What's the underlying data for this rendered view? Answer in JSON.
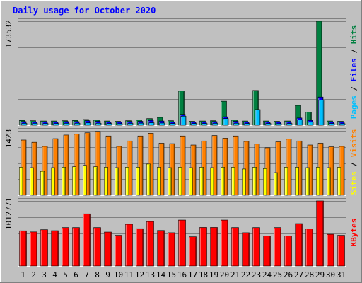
{
  "chart_data": [
    {
      "type": "bar",
      "title": "Daily usage for October 2020",
      "categories": [
        "1",
        "2",
        "3",
        "4",
        "5",
        "6",
        "7",
        "8",
        "9",
        "10",
        "11",
        "12",
        "13",
        "14",
        "15",
        "16",
        "17",
        "18",
        "19",
        "20",
        "21",
        "22",
        "23",
        "24",
        "25",
        "26",
        "27",
        "28",
        "29",
        "30",
        "31"
      ],
      "weekend_days": [
        "3",
        "4",
        "10",
        "11",
        "17",
        "18",
        "24",
        "25",
        "31"
      ],
      "max_label": "173532",
      "ylim": [
        0,
        173532
      ],
      "series": [
        {
          "name": "Hits",
          "color": "#008040",
          "values": [
            8000,
            7500,
            7000,
            7000,
            7500,
            8000,
            9500,
            8500,
            7000,
            6500,
            7500,
            8500,
            11000,
            13000,
            7500,
            57000,
            6500,
            7000,
            7500,
            40000,
            8500,
            7000,
            58000,
            7000,
            6500,
            7000,
            33000,
            22000,
            173532,
            7000,
            6500
          ]
        },
        {
          "name": "Files",
          "color": "#0000ff",
          "values": [
            6000,
            5500,
            5500,
            5500,
            6000,
            6000,
            7500,
            6500,
            5500,
            5000,
            6000,
            6500,
            8000,
            7000,
            5500,
            18000,
            5500,
            5500,
            6000,
            14000,
            6500,
            5500,
            9000,
            5500,
            5000,
            5500,
            12000,
            8000,
            47000,
            5500,
            5000
          ]
        },
        {
          "name": "Pages",
          "color": "#00c0ff",
          "values": [
            3000,
            3000,
            2800,
            2800,
            3000,
            3200,
            3800,
            3200,
            2800,
            2500,
            3000,
            3300,
            4000,
            3500,
            2800,
            15000,
            2800,
            2800,
            3000,
            11000,
            3200,
            2800,
            26000,
            2800,
            2500,
            2800,
            9000,
            5000,
            42000,
            2800,
            2500
          ]
        }
      ],
      "legend_right": [
        "Pages",
        "Files",
        "Hits"
      ]
    },
    {
      "type": "bar",
      "max_label": "1423",
      "ylim": [
        0,
        1423
      ],
      "series": [
        {
          "name": "Visits",
          "color": "#ff8000",
          "values": [
            1220,
            1170,
            1080,
            1250,
            1330,
            1350,
            1380,
            1410,
            1310,
            1080,
            1200,
            1310,
            1370,
            1150,
            1140,
            1310,
            1110,
            1200,
            1320,
            1260,
            1310,
            1190,
            1130,
            1050,
            1180,
            1240,
            1200,
            1110,
            1150,
            1070,
            1080
          ]
        },
        {
          "name": "Sites",
          "color": "#ffff00",
          "values": [
            620,
            610,
            530,
            610,
            620,
            630,
            660,
            630,
            620,
            610,
            620,
            620,
            690,
            620,
            610,
            620,
            610,
            620,
            610,
            620,
            620,
            580,
            620,
            590,
            500,
            620,
            620,
            610,
            620,
            610,
            620
          ]
        }
      ],
      "legend_right": [
        "Sites",
        "Visits"
      ]
    },
    {
      "type": "bar",
      "max_label": "1012771",
      "ylim": [
        0,
        1012771
      ],
      "series": [
        {
          "name": "KBytes",
          "color": "#ff0000",
          "values": [
            548000,
            530000,
            565000,
            550000,
            598000,
            598000,
            812000,
            598000,
            528000,
            478000,
            650000,
            581000,
            693000,
            553000,
            518000,
            715000,
            455000,
            600000,
            600000,
            715000,
            598000,
            518000,
            598000,
            470000,
            598000,
            470000,
            660000,
            578000,
            1012771,
            494000,
            478000
          ]
        }
      ],
      "legend_right": [
        "KBytes"
      ]
    }
  ]
}
